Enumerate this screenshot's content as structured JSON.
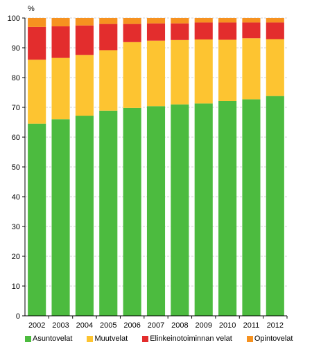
{
  "chart_data": {
    "type": "bar",
    "stacked": true,
    "title": "",
    "xlabel": "",
    "ylabel": "%",
    "ylim": [
      0,
      100
    ],
    "yticks": [
      0,
      10,
      20,
      30,
      40,
      50,
      60,
      70,
      80,
      90,
      100
    ],
    "grid": true,
    "legend_position": "bottom",
    "categories": [
      "2002",
      "2003",
      "2004",
      "2005",
      "2006",
      "2007",
      "2008",
      "2009",
      "2010",
      "2011",
      "2012"
    ],
    "series": [
      {
        "name": "Asuntovelat",
        "color": "#4cbb3f",
        "values": [
          64.5,
          66.0,
          67.2,
          68.9,
          69.8,
          70.4,
          71.0,
          71.3,
          72.1,
          72.7,
          73.8
        ]
      },
      {
        "name": "Muutvelat",
        "color": "#fdc431",
        "values": [
          21.5,
          20.6,
          20.4,
          20.3,
          22.1,
          22.0,
          21.6,
          21.5,
          20.6,
          20.5,
          19.1
        ]
      },
      {
        "name": "Elinkeinotoiminnan velat",
        "color": "#e32d2d",
        "values": [
          11.0,
          10.6,
          9.9,
          8.8,
          6.1,
          5.8,
          5.6,
          5.7,
          5.8,
          5.3,
          5.6
        ]
      },
      {
        "name": "Opintovelat",
        "color": "#f69220",
        "values": [
          3.0,
          2.8,
          2.5,
          2.0,
          2.0,
          1.8,
          1.8,
          1.5,
          1.5,
          1.5,
          1.5
        ]
      }
    ]
  }
}
